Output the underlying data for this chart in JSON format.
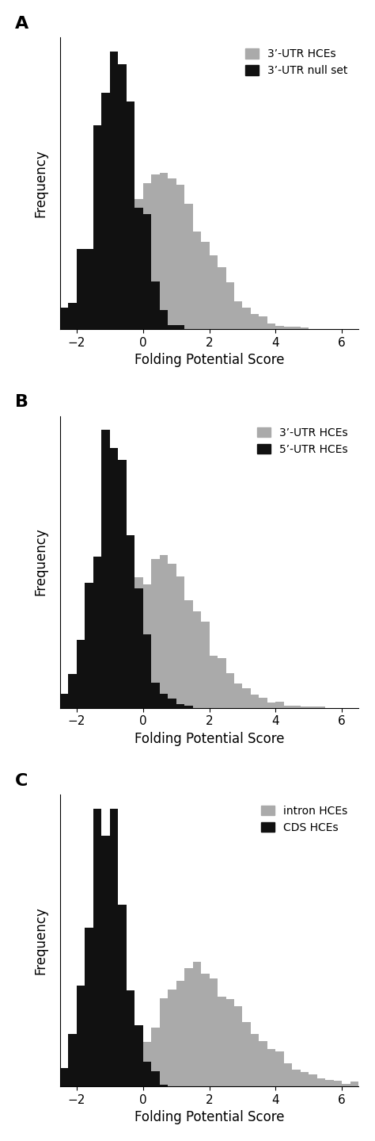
{
  "panels": [
    {
      "label": "A",
      "legend": [
        "3’-UTR HCEs",
        "3’-UTR null set"
      ],
      "s1_mu": -0.3,
      "s1_sigma": 1.6,
      "s1_skew": 2.0,
      "s1_n": 4000,
      "s2_mu": -1.1,
      "s2_sigma": 0.7,
      "s2_skew": 0.5,
      "s2_n": 800
    },
    {
      "label": "B",
      "legend": [
        "3’-UTR HCEs",
        "5’-UTR HCEs"
      ],
      "s1_mu": -0.3,
      "s1_sigma": 1.6,
      "s1_skew": 2.0,
      "s1_n": 4000,
      "s2_mu": -1.0,
      "s2_sigma": 0.65,
      "s2_skew": 0.3,
      "s2_n": 900
    },
    {
      "label": "C",
      "legend": [
        "intron HCEs",
        "CDS HCEs"
      ],
      "s1_mu": 0.5,
      "s1_sigma": 2.0,
      "s1_skew": 2.5,
      "s1_n": 6000,
      "s2_mu": -1.2,
      "s2_sigma": 0.55,
      "s2_skew": 0.2,
      "s2_n": 1000
    }
  ],
  "xlabel": "Folding Potential Score",
  "ylabel": "Frequency",
  "xlim": [
    -2.5,
    6.5
  ],
  "xticks": [
    -2,
    0,
    2,
    4,
    6
  ],
  "bin_width": 0.25,
  "color_light": "#aaaaaa",
  "color_dark": "#111111"
}
